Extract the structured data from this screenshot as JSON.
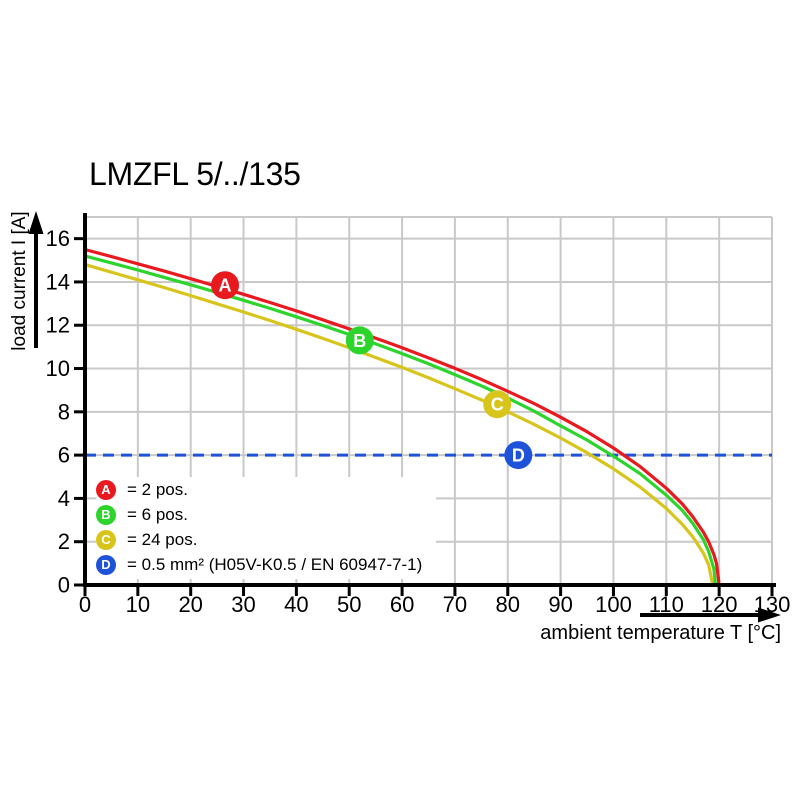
{
  "title": "LMZFL 5/../135",
  "chart_data": {
    "type": "line",
    "title": "LMZFL 5/../135",
    "xlabel": "ambient temperature T [°C]",
    "ylabel": "load current I [A]",
    "xlim": [
      0,
      130
    ],
    "ylim": [
      0,
      17
    ],
    "xticks": [
      0,
      10,
      20,
      30,
      40,
      50,
      60,
      70,
      80,
      90,
      100,
      110,
      120,
      130
    ],
    "yticks": [
      0,
      2,
      4,
      6,
      8,
      10,
      12,
      14,
      16
    ],
    "grid": true,
    "gridline_color": "#c9c9c9",
    "axis_color": "#000000",
    "legend_position": "lower-left-inside",
    "series": [
      {
        "id": "C",
        "name": "24 pos.",
        "color": "#d8c51c",
        "style": "solid",
        "points": [
          [
            0,
            14.8
          ],
          [
            5,
            14.45
          ],
          [
            10,
            14.1
          ],
          [
            15,
            13.74
          ],
          [
            20,
            13.37
          ],
          [
            25,
            12.99
          ],
          [
            30,
            12.61
          ],
          [
            35,
            12.22
          ],
          [
            40,
            11.81
          ],
          [
            45,
            11.39
          ],
          [
            50,
            10.96
          ],
          [
            55,
            10.51
          ],
          [
            60,
            10.05
          ],
          [
            65,
            9.57
          ],
          [
            70,
            9.07
          ],
          [
            75,
            8.55
          ],
          [
            80,
            8.0
          ],
          [
            85,
            7.42
          ],
          [
            90,
            6.79
          ],
          [
            95,
            6.11
          ],
          [
            100,
            5.37
          ],
          [
            105,
            4.53
          ],
          [
            110,
            3.54
          ],
          [
            113,
            2.81
          ],
          [
            115,
            2.23
          ],
          [
            117,
            1.48
          ],
          [
            118,
            0.94
          ],
          [
            118.8,
            0
          ]
        ]
      },
      {
        "id": "B",
        "name": "6 pos.",
        "color": "#2cd42c",
        "style": "solid",
        "points": [
          [
            0,
            15.2
          ],
          [
            5,
            14.88
          ],
          [
            10,
            14.55
          ],
          [
            15,
            14.21
          ],
          [
            20,
            13.87
          ],
          [
            25,
            13.51
          ],
          [
            30,
            13.15
          ],
          [
            35,
            12.78
          ],
          [
            40,
            12.39
          ],
          [
            45,
            11.99
          ],
          [
            50,
            11.57
          ],
          [
            55,
            11.14
          ],
          [
            60,
            10.69
          ],
          [
            65,
            10.22
          ],
          [
            70,
            9.72
          ],
          [
            75,
            9.2
          ],
          [
            80,
            8.64
          ],
          [
            85,
            8.03
          ],
          [
            90,
            7.35
          ],
          [
            95,
            6.7
          ],
          [
            100,
            5.95
          ],
          [
            105,
            5.15
          ],
          [
            110,
            4.15
          ],
          [
            113,
            3.45
          ],
          [
            115,
            2.85
          ],
          [
            117,
            2.1
          ],
          [
            118,
            1.55
          ],
          [
            119,
            0.75
          ],
          [
            119.3,
            0
          ]
        ]
      },
      {
        "id": "A",
        "name": "2 pos.",
        "color": "#e8191f",
        "style": "solid",
        "points": [
          [
            0,
            15.5
          ],
          [
            5,
            15.17
          ],
          [
            10,
            14.84
          ],
          [
            15,
            14.5
          ],
          [
            20,
            14.15
          ],
          [
            25,
            13.79
          ],
          [
            30,
            13.43
          ],
          [
            35,
            13.05
          ],
          [
            40,
            12.66
          ],
          [
            45,
            12.25
          ],
          [
            50,
            11.83
          ],
          [
            55,
            11.4
          ],
          [
            60,
            10.96
          ],
          [
            65,
            10.49
          ],
          [
            70,
            10.01
          ],
          [
            75,
            9.5
          ],
          [
            80,
            8.95
          ],
          [
            85,
            8.38
          ],
          [
            90,
            7.75
          ],
          [
            95,
            7.08
          ],
          [
            100,
            6.33
          ],
          [
            105,
            5.48
          ],
          [
            110,
            4.47
          ],
          [
            113,
            3.75
          ],
          [
            115,
            3.16
          ],
          [
            117,
            2.45
          ],
          [
            118,
            2.0
          ],
          [
            119,
            1.41
          ],
          [
            119.5,
            1.0
          ],
          [
            120,
            0
          ]
        ]
      },
      {
        "id": "D",
        "name": "0.5 mm² (H05V-K0.5 / EN 60947-7-1)",
        "color": "#1e53d9",
        "style": "dashed",
        "points": [
          [
            0,
            6
          ],
          [
            130,
            6
          ]
        ]
      }
    ],
    "markers": [
      {
        "letter": "A",
        "x": 26.5,
        "y": 13.85,
        "color": "#e8191f"
      },
      {
        "letter": "B",
        "x": 52,
        "y": 11.3,
        "color": "#2cd42c"
      },
      {
        "letter": "C",
        "x": 78,
        "y": 8.35,
        "color": "#d8c51c"
      },
      {
        "letter": "D",
        "x": 82,
        "y": 6.0,
        "color": "#1e53d9"
      }
    ]
  },
  "legend": {
    "items": [
      {
        "letter": "A",
        "color": "#e8191f",
        "label": "= 2 pos."
      },
      {
        "letter": "B",
        "color": "#2cd42c",
        "label": "= 6 pos."
      },
      {
        "letter": "C",
        "color": "#d8c51c",
        "label": "= 24 pos."
      },
      {
        "letter": "D",
        "color": "#1e53d9",
        "label": "= 0.5 mm² (H05V-K0.5 / EN 60947-7-1)"
      }
    ]
  }
}
